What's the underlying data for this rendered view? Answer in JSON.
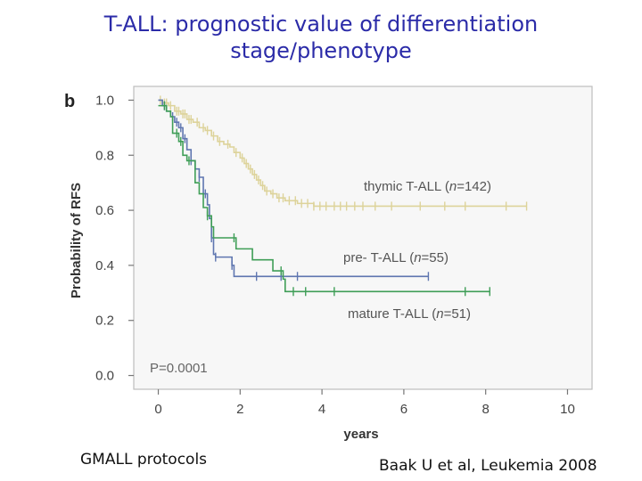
{
  "slide": {
    "title_line1": "T-ALL: prognostic value of differentiation",
    "title_line2": "stage/phenotype",
    "caption_left": "GMALL protocols",
    "caption_right": "Baak U et al, Leukemia 2008"
  },
  "chart_data": {
    "type": "line",
    "panel_label": "b",
    "xlabel": "years",
    "ylabel": "Probability of RFS",
    "xlim": [
      -0.6,
      10.6
    ],
    "ylim": [
      -0.05,
      1.05
    ],
    "x_ticks": [
      0,
      2,
      4,
      6,
      8,
      10
    ],
    "x_tick_labels": [
      "0",
      "2",
      "4",
      "6",
      "8",
      "10"
    ],
    "y_ticks": [
      0.0,
      0.2,
      0.4,
      0.6,
      0.8,
      1.0
    ],
    "y_tick_labels": [
      "0.0",
      "0.2",
      "0.4",
      "0.6",
      "0.8",
      "1.0"
    ],
    "p_value": "P=0.0001",
    "series": [
      {
        "name": "thymic T-ALL",
        "label_prefix": "thymic T-ALL (",
        "label_n": "n",
        "label_suffix": "=142)",
        "color": "#ddd39a",
        "steps": [
          [
            0,
            1.0
          ],
          [
            0.1,
            0.99
          ],
          [
            0.25,
            0.98
          ],
          [
            0.4,
            0.96
          ],
          [
            0.55,
            0.95
          ],
          [
            0.7,
            0.93
          ],
          [
            0.85,
            0.92
          ],
          [
            1.0,
            0.9
          ],
          [
            1.15,
            0.89
          ],
          [
            1.3,
            0.87
          ],
          [
            1.45,
            0.85
          ],
          [
            1.6,
            0.84
          ],
          [
            1.75,
            0.83
          ],
          [
            1.85,
            0.81
          ],
          [
            2.0,
            0.79
          ],
          [
            2.1,
            0.77
          ],
          [
            2.2,
            0.75
          ],
          [
            2.3,
            0.73
          ],
          [
            2.4,
            0.71
          ],
          [
            2.5,
            0.69
          ],
          [
            2.6,
            0.67
          ],
          [
            2.75,
            0.66
          ],
          [
            2.9,
            0.645
          ],
          [
            3.1,
            0.635
          ],
          [
            3.4,
            0.625
          ],
          [
            3.8,
            0.615
          ],
          [
            9.0,
            0.615
          ]
        ],
        "censor_x": [
          0.05,
          0.15,
          0.2,
          0.3,
          0.45,
          0.5,
          0.6,
          0.65,
          0.75,
          0.8,
          0.95,
          1.1,
          1.2,
          1.35,
          1.5,
          1.7,
          1.9,
          2.05,
          2.15,
          2.25,
          2.35,
          2.45,
          2.55,
          2.65,
          2.8,
          2.95,
          3.05,
          3.2,
          3.35,
          3.5,
          3.65,
          3.8,
          3.95,
          4.1,
          4.3,
          4.45,
          4.6,
          4.8,
          5.0,
          5.3,
          5.7,
          6.4,
          7.0,
          7.5,
          8.5,
          9.0
        ]
      },
      {
        "name": "pre- T-ALL",
        "label_prefix": "pre- T-ALL (",
        "label_n": "n",
        "label_suffix": "=55)",
        "color": "#5f76b0",
        "steps": [
          [
            0,
            1.0
          ],
          [
            0.1,
            0.98
          ],
          [
            0.2,
            0.96
          ],
          [
            0.3,
            0.94
          ],
          [
            0.4,
            0.92
          ],
          [
            0.5,
            0.9
          ],
          [
            0.6,
            0.86
          ],
          [
            0.7,
            0.82
          ],
          [
            0.8,
            0.78
          ],
          [
            0.9,
            0.75
          ],
          [
            1.0,
            0.72
          ],
          [
            1.1,
            0.66
          ],
          [
            1.2,
            0.62
          ],
          [
            1.25,
            0.57
          ],
          [
            1.3,
            0.5
          ],
          [
            1.35,
            0.44
          ],
          [
            1.4,
            0.43
          ],
          [
            1.8,
            0.4
          ],
          [
            1.85,
            0.36
          ],
          [
            6.6,
            0.36
          ]
        ],
        "censor_x": [
          0.15,
          0.35,
          0.45,
          0.55,
          0.65,
          0.8,
          1.0,
          1.15,
          1.3,
          1.4,
          1.8,
          2.4,
          3.0,
          3.4,
          6.6
        ]
      },
      {
        "name": "mature T-ALL",
        "label_prefix": "mature T-ALL (",
        "label_n": "n",
        "label_suffix": "=51)",
        "color": "#3f9e57",
        "steps": [
          [
            0,
            0.98
          ],
          [
            0.2,
            0.96
          ],
          [
            0.3,
            0.94
          ],
          [
            0.35,
            0.88
          ],
          [
            0.5,
            0.85
          ],
          [
            0.6,
            0.8
          ],
          [
            0.7,
            0.78
          ],
          [
            0.9,
            0.7
          ],
          [
            1.0,
            0.66
          ],
          [
            1.1,
            0.61
          ],
          [
            1.2,
            0.58
          ],
          [
            1.3,
            0.54
          ],
          [
            1.35,
            0.5
          ],
          [
            1.9,
            0.46
          ],
          [
            2.3,
            0.42
          ],
          [
            2.8,
            0.38
          ],
          [
            3.05,
            0.35
          ],
          [
            3.1,
            0.305
          ],
          [
            8.1,
            0.305
          ]
        ],
        "censor_x": [
          0.15,
          0.45,
          0.55,
          0.75,
          1.2,
          1.85,
          3.0,
          3.3,
          3.6,
          4.3,
          7.5,
          8.1
        ]
      }
    ]
  }
}
